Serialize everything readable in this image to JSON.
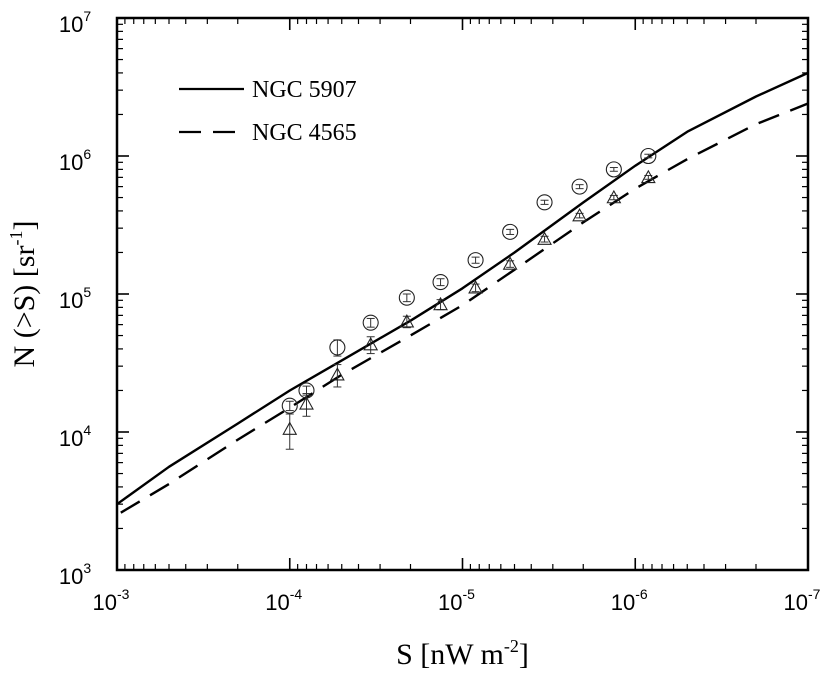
{
  "chart_data": {
    "type": "line",
    "title": "",
    "xlabel": {
      "main": "S [nW m",
      "sup": "-2",
      "end": "]"
    },
    "ylabel": {
      "main": "N (>S) [sr",
      "sup": "-1",
      "end": "]"
    },
    "x_scale": "log",
    "y_scale": "log",
    "x_reversed": true,
    "xlim": [
      0.001,
      1e-07
    ],
    "ylim": [
      1000,
      10000000
    ],
    "x_ticks": [
      {
        "value": 0.001,
        "base": "10",
        "exp": "-3"
      },
      {
        "value": 0.0001,
        "base": "10",
        "exp": "-4"
      },
      {
        "value": 1e-05,
        "base": "10",
        "exp": "-5"
      },
      {
        "value": 1e-06,
        "base": "10",
        "exp": "-6"
      },
      {
        "value": 1e-07,
        "base": "10",
        "exp": "-7"
      }
    ],
    "y_ticks": [
      {
        "value": 1000,
        "base": "10",
        "exp": "3"
      },
      {
        "value": 10000,
        "base": "10",
        "exp": "4"
      },
      {
        "value": 100000,
        "base": "10",
        "exp": "5"
      },
      {
        "value": 1000000,
        "base": "10",
        "exp": "6"
      },
      {
        "value": 10000000,
        "base": "10",
        "exp": "7"
      }
    ],
    "legend_position": "top-left",
    "grid": false,
    "series": [
      {
        "name": "NGC 5907",
        "style": "solid",
        "x": [
          0.001,
          0.0005,
          0.0002,
          0.0001,
          5e-05,
          2e-05,
          1e-05,
          5e-06,
          2e-06,
          1e-06,
          5e-07,
          2e-07,
          1e-07
        ],
        "y": [
          3000,
          5600,
          11500,
          20000,
          33000,
          64000,
          110000,
          200000,
          460000,
          850000,
          1500000,
          2700000,
          4000000
        ]
      },
      {
        "name": "NGC 4565",
        "style": "dashed",
        "x": [
          0.00095,
          0.0005,
          0.0002,
          0.0001,
          5e-05,
          2e-05,
          1e-05,
          5e-06,
          2e-06,
          1e-06,
          5e-07,
          2e-07,
          1e-07
        ],
        "y": [
          2600,
          4200,
          8800,
          15000,
          26000,
          50000,
          83000,
          150000,
          330000,
          580000,
          950000,
          1700000,
          2400000
        ]
      }
    ],
    "markers": [
      {
        "series": "NGC 5907",
        "shape": "circle",
        "points": [
          {
            "x": 0.0001,
            "y": 15500,
            "err": 1200
          },
          {
            "x": 8e-05,
            "y": 20000,
            "err": 1500
          },
          {
            "x": 5.3e-05,
            "y": 41000,
            "err": 5500
          },
          {
            "x": 3.4e-05,
            "y": 62000,
            "err": 4500
          },
          {
            "x": 2.1e-05,
            "y": 94000,
            "err": 6000
          },
          {
            "x": 1.34e-05,
            "y": 122000,
            "err": 7000
          },
          {
            "x": 8.4e-06,
            "y": 176000,
            "err": 9000
          },
          {
            "x": 5.3e-06,
            "y": 282000,
            "err": 12000
          },
          {
            "x": 3.35e-06,
            "y": 462000,
            "err": 16000
          },
          {
            "x": 2.1e-06,
            "y": 600000,
            "err": 20000
          },
          {
            "x": 1.33e-06,
            "y": 800000,
            "err": 25000
          },
          {
            "x": 8.4e-07,
            "y": 1000000,
            "err": 30000
          }
        ]
      },
      {
        "series": "NGC 4565",
        "shape": "triangle",
        "points": [
          {
            "x": 0.0001,
            "y": 10500,
            "err": 3000
          },
          {
            "x": 8e-05,
            "y": 16000,
            "err": 3000
          },
          {
            "x": 5.3e-05,
            "y": 26000,
            "err": 4800
          },
          {
            "x": 3.4e-05,
            "y": 43000,
            "err": 6000
          },
          {
            "x": 2.1e-05,
            "y": 63000,
            "err": 6000
          },
          {
            "x": 1.34e-05,
            "y": 84000,
            "err": 7000
          },
          {
            "x": 8.4e-06,
            "y": 111000,
            "err": 7000
          },
          {
            "x": 5.3e-06,
            "y": 165000,
            "err": 9000
          },
          {
            "x": 3.35e-06,
            "y": 250000,
            "err": 12000
          },
          {
            "x": 2.1e-06,
            "y": 370000,
            "err": 14000
          },
          {
            "x": 1.33e-06,
            "y": 500000,
            "err": 18000
          },
          {
            "x": 8.4e-07,
            "y": 700000,
            "err": 22000
          }
        ]
      }
    ]
  }
}
